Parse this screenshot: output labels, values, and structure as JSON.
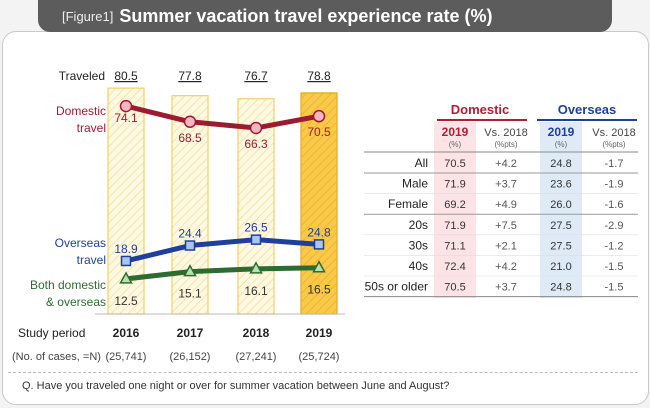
{
  "title_bar": {
    "figure_label": "[Figure1]",
    "title": "Summer vacation travel experience rate (%)"
  },
  "chart_data": {
    "type": "line",
    "title": "Summer vacation travel experience rate (%)",
    "x": [
      "2016",
      "2017",
      "2018",
      "2019"
    ],
    "cases": [
      "(25,741)",
      "(26,152)",
      "(27,241)",
      "(25,724)"
    ],
    "row_labels": {
      "traveled": "Traveled",
      "study_period": "Study period",
      "cases_label": "(No. of cases, =N)"
    },
    "traveled": [
      80.5,
      77.8,
      76.7,
      78.8
    ],
    "series": [
      {
        "name": "Domestic travel",
        "values": [
          74.1,
          68.5,
          66.3,
          70.5
        ],
        "color": "#9b1b30"
      },
      {
        "name": "Overseas travel",
        "values": [
          18.9,
          24.4,
          26.5,
          24.8
        ],
        "color": "#1f3f9a"
      },
      {
        "name": "Both domestic & overseas",
        "values": [
          12.5,
          15.1,
          16.1,
          16.5
        ],
        "color": "#2e6b2f"
      }
    ],
    "series_label_lines": [
      [
        "Domestic",
        "travel"
      ],
      [
        "Overseas",
        "travel"
      ],
      [
        "Both domestic",
        "& overseas"
      ]
    ],
    "highlight_color": "#f5c542",
    "ylim": [
      0,
      100
    ]
  },
  "table": {
    "domestic_header": "Domestic",
    "overseas_header": "Overseas",
    "col_year": "2019",
    "col_year_sub": "(%)",
    "col_vs": "Vs. 2018",
    "col_vs_sub": "(%pts)",
    "rows": [
      {
        "label": "All",
        "d2019": "70.5",
        "dvs": "+4.2",
        "o2019": "24.8",
        "ovs": "-1.7"
      },
      {
        "label": "Male",
        "d2019": "71.9",
        "dvs": "+3.7",
        "o2019": "23.6",
        "ovs": "-1.9"
      },
      {
        "label": "Female",
        "d2019": "69.2",
        "dvs": "+4.9",
        "o2019": "26.0",
        "ovs": "-1.6"
      },
      {
        "label": "20s",
        "d2019": "71.9",
        "dvs": "+7.5",
        "o2019": "27.5",
        "ovs": "-2.9"
      },
      {
        "label": "30s",
        "d2019": "71.1",
        "dvs": "+2.1",
        "o2019": "27.5",
        "ovs": "-1.2"
      },
      {
        "label": "40s",
        "d2019": "72.4",
        "dvs": "+4.2",
        "o2019": "21.0",
        "ovs": "-1.5"
      },
      {
        "label": "50s or older",
        "d2019": "70.5",
        "dvs": "+3.7",
        "o2019": "24.8",
        "ovs": "-1.5"
      }
    ]
  },
  "question": "Q. Have you traveled one night or over for summer vacation between June and August?"
}
